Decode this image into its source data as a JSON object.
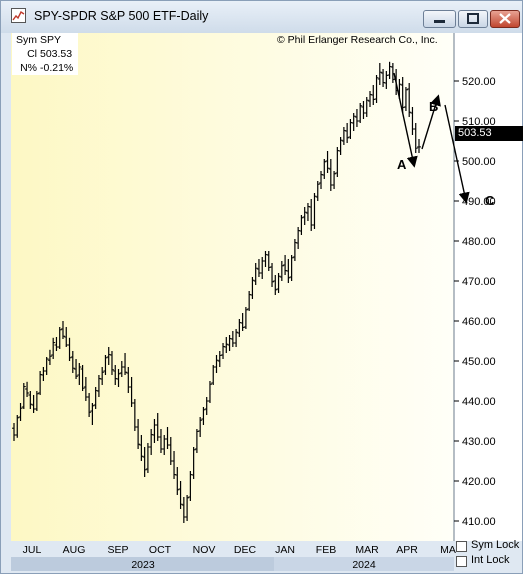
{
  "window": {
    "title": "SPY-SPDR S&P 500 ETF-Daily",
    "controls": [
      "minimize",
      "maximize",
      "close"
    ]
  },
  "info_box": {
    "rows": [
      {
        "label": "Sym",
        "value": "SPY"
      },
      {
        "label": "Cl",
        "value": "503.53"
      },
      {
        "label": "N%",
        "value": "-0.21%"
      }
    ]
  },
  "copyright": "© Phil Erlanger Research Co., Inc.",
  "last_price_tag": "503.53",
  "footer": {
    "sym_lock_label": "Sym Lock",
    "int_lock_label": "Int Lock",
    "sym_lock_checked": false,
    "int_lock_checked": false
  },
  "colors": {
    "plot_bg_light": "#fffff2",
    "plot_bg_shaded": "#fdf8c4",
    "bars": "#000000",
    "axis_bg": "#dfe8f2",
    "year_band": "#c9d6e6"
  },
  "chart_data": {
    "type": "bar",
    "style": "OHLC daily price bars",
    "title": "SPY-SPDR S&P 500 ETF-Daily",
    "ylim": [
      405,
      532
    ],
    "y_ticks": [
      "410.00",
      "420.00",
      "430.00",
      "440.00",
      "450.00",
      "460.00",
      "470.00",
      "480.00",
      "490.00",
      "500.00",
      "510.00",
      "520.00"
    ],
    "x_months": [
      "JUL",
      "AUG",
      "SEP",
      "OCT",
      "NOV",
      "DEC",
      "JAN",
      "FEB",
      "MAR",
      "APR",
      "MA"
    ],
    "years": [
      "2023",
      "2024"
    ],
    "grid": false,
    "last_close": 503.53,
    "series": [
      {
        "values": [
          {
            "o": 433.2,
            "h": 434.5,
            "l": 430.0,
            "c": 431.5
          },
          {
            "o": 431.5,
            "h": 436.5,
            "l": 430.8,
            "c": 435.8
          },
          {
            "o": 436.0,
            "h": 439.5,
            "l": 435.0,
            "c": 438.2
          },
          {
            "o": 438.5,
            "h": 444.5,
            "l": 438.0,
            "c": 443.6
          },
          {
            "o": 443.0,
            "h": 444.8,
            "l": 441.0,
            "c": 442.0
          },
          {
            "o": 441.5,
            "h": 442.5,
            "l": 438.0,
            "c": 439.2
          },
          {
            "o": 439.0,
            "h": 441.5,
            "l": 437.0,
            "c": 438.0
          },
          {
            "o": 438.0,
            "h": 442.5,
            "l": 437.5,
            "c": 441.8
          },
          {
            "o": 442.0,
            "h": 447.5,
            "l": 441.5,
            "c": 446.6
          },
          {
            "o": 446.5,
            "h": 448.5,
            "l": 445.0,
            "c": 447.5
          },
          {
            "o": 447.5,
            "h": 451.0,
            "l": 446.5,
            "c": 450.5
          },
          {
            "o": 450.2,
            "h": 452.8,
            "l": 449.0,
            "c": 451.2
          },
          {
            "o": 451.5,
            "h": 455.8,
            "l": 450.5,
            "c": 454.6
          },
          {
            "o": 454.0,
            "h": 456.0,
            "l": 452.5,
            "c": 453.5
          },
          {
            "o": 453.5,
            "h": 458.5,
            "l": 453.0,
            "c": 457.8
          },
          {
            "o": 458.0,
            "h": 460.0,
            "l": 455.5,
            "c": 456.2
          },
          {
            "o": 456.0,
            "h": 458.5,
            "l": 453.5,
            "c": 454.0
          },
          {
            "o": 454.0,
            "h": 455.8,
            "l": 450.0,
            "c": 450.8
          },
          {
            "o": 451.0,
            "h": 452.5,
            "l": 447.0,
            "c": 448.2
          },
          {
            "o": 448.0,
            "h": 450.5,
            "l": 445.5,
            "c": 446.2
          },
          {
            "o": 446.5,
            "h": 449.5,
            "l": 444.0,
            "c": 448.5
          },
          {
            "o": 448.0,
            "h": 449.0,
            "l": 442.5,
            "c": 443.2
          },
          {
            "o": 443.5,
            "h": 446.0,
            "l": 440.0,
            "c": 441.0
          },
          {
            "o": 441.0,
            "h": 442.0,
            "l": 436.0,
            "c": 437.2
          },
          {
            "o": 437.5,
            "h": 439.5,
            "l": 434.0,
            "c": 438.8
          },
          {
            "o": 439.0,
            "h": 443.5,
            "l": 438.0,
            "c": 442.6
          },
          {
            "o": 442.5,
            "h": 446.5,
            "l": 441.0,
            "c": 445.6
          },
          {
            "o": 445.5,
            "h": 448.5,
            "l": 444.0,
            "c": 447.2
          },
          {
            "o": 447.5,
            "h": 451.5,
            "l": 446.5,
            "c": 450.8
          },
          {
            "o": 451.0,
            "h": 453.5,
            "l": 449.0,
            "c": 451.6
          },
          {
            "o": 451.5,
            "h": 452.5,
            "l": 446.5,
            "c": 447.8
          },
          {
            "o": 447.5,
            "h": 449.0,
            "l": 444.0,
            "c": 445.6
          },
          {
            "o": 445.5,
            "h": 448.0,
            "l": 443.5,
            "c": 446.8
          },
          {
            "o": 447.0,
            "h": 450.0,
            "l": 446.0,
            "c": 448.5
          },
          {
            "o": 448.5,
            "h": 452.0,
            "l": 446.5,
            "c": 447.2
          },
          {
            "o": 447.0,
            "h": 448.5,
            "l": 442.0,
            "c": 443.5
          },
          {
            "o": 443.5,
            "h": 446.0,
            "l": 438.5,
            "c": 439.5
          },
          {
            "o": 439.5,
            "h": 440.5,
            "l": 432.5,
            "c": 433.5
          },
          {
            "o": 433.5,
            "h": 435.5,
            "l": 428.0,
            "c": 429.2
          },
          {
            "o": 429.0,
            "h": 431.5,
            "l": 425.0,
            "c": 426.2
          },
          {
            "o": 426.0,
            "h": 428.5,
            "l": 421.0,
            "c": 422.8
          },
          {
            "o": 423.0,
            "h": 429.5,
            "l": 422.0,
            "c": 428.5
          },
          {
            "o": 428.5,
            "h": 433.0,
            "l": 426.5,
            "c": 431.6
          },
          {
            "o": 431.5,
            "h": 435.5,
            "l": 429.5,
            "c": 434.0
          },
          {
            "o": 434.0,
            "h": 437.0,
            "l": 430.0,
            "c": 431.0
          },
          {
            "o": 431.0,
            "h": 433.0,
            "l": 427.0,
            "c": 428.0
          },
          {
            "o": 428.0,
            "h": 431.5,
            "l": 426.5,
            "c": 430.5
          },
          {
            "o": 430.5,
            "h": 433.5,
            "l": 428.0,
            "c": 429.0
          },
          {
            "o": 429.0,
            "h": 431.0,
            "l": 424.0,
            "c": 425.0
          },
          {
            "o": 425.0,
            "h": 427.5,
            "l": 420.5,
            "c": 421.6
          },
          {
            "o": 421.5,
            "h": 423.5,
            "l": 416.5,
            "c": 417.8
          },
          {
            "o": 418.0,
            "h": 420.0,
            "l": 413.0,
            "c": 414.2
          },
          {
            "o": 414.0,
            "h": 416.0,
            "l": 409.5,
            "c": 411.0
          },
          {
            "o": 411.0,
            "h": 416.5,
            "l": 410.0,
            "c": 415.8
          },
          {
            "o": 416.0,
            "h": 422.5,
            "l": 415.0,
            "c": 421.6
          },
          {
            "o": 421.5,
            "h": 428.5,
            "l": 420.5,
            "c": 427.8
          },
          {
            "o": 428.0,
            "h": 433.0,
            "l": 427.0,
            "c": 432.4
          },
          {
            "o": 432.5,
            "h": 436.0,
            "l": 431.0,
            "c": 435.2
          },
          {
            "o": 435.5,
            "h": 438.5,
            "l": 434.0,
            "c": 437.8
          },
          {
            "o": 438.0,
            "h": 441.0,
            "l": 436.5,
            "c": 440.0
          },
          {
            "o": 440.0,
            "h": 445.0,
            "l": 439.5,
            "c": 444.2
          },
          {
            "o": 444.5,
            "h": 449.0,
            "l": 444.0,
            "c": 448.5
          },
          {
            "o": 448.5,
            "h": 451.5,
            "l": 447.0,
            "c": 450.2
          },
          {
            "o": 450.0,
            "h": 452.5,
            "l": 448.5,
            "c": 451.4
          },
          {
            "o": 451.5,
            "h": 454.5,
            "l": 450.5,
            "c": 453.6
          },
          {
            "o": 453.5,
            "h": 456.0,
            "l": 452.0,
            "c": 454.2
          },
          {
            "o": 454.0,
            "h": 456.5,
            "l": 452.5,
            "c": 455.6
          },
          {
            "o": 455.5,
            "h": 457.5,
            "l": 453.5,
            "c": 454.5
          },
          {
            "o": 454.5,
            "h": 458.0,
            "l": 453.5,
            "c": 457.2
          },
          {
            "o": 457.0,
            "h": 460.5,
            "l": 456.0,
            "c": 459.6
          },
          {
            "o": 459.5,
            "h": 462.0,
            "l": 457.5,
            "c": 458.4
          },
          {
            "o": 458.5,
            "h": 463.5,
            "l": 458.0,
            "c": 462.8
          },
          {
            "o": 463.0,
            "h": 467.5,
            "l": 462.5,
            "c": 466.6
          },
          {
            "o": 466.5,
            "h": 471.0,
            "l": 465.5,
            "c": 470.2
          },
          {
            "o": 470.0,
            "h": 474.5,
            "l": 469.0,
            "c": 473.2
          },
          {
            "o": 473.0,
            "h": 475.5,
            "l": 471.0,
            "c": 472.0
          },
          {
            "o": 472.0,
            "h": 476.0,
            "l": 470.5,
            "c": 475.0
          },
          {
            "o": 475.0,
            "h": 477.5,
            "l": 473.5,
            "c": 476.6
          },
          {
            "o": 476.5,
            "h": 477.5,
            "l": 472.5,
            "c": 473.4
          },
          {
            "o": 473.5,
            "h": 474.5,
            "l": 468.5,
            "c": 469.8
          },
          {
            "o": 470.0,
            "h": 471.5,
            "l": 466.5,
            "c": 467.8
          },
          {
            "o": 468.0,
            "h": 472.0,
            "l": 467.0,
            "c": 471.2
          },
          {
            "o": 471.0,
            "h": 475.0,
            "l": 470.0,
            "c": 473.8
          },
          {
            "o": 474.0,
            "h": 476.5,
            "l": 471.5,
            "c": 472.6
          },
          {
            "o": 472.5,
            "h": 475.5,
            "l": 469.5,
            "c": 470.8
          },
          {
            "o": 471.0,
            "h": 476.5,
            "l": 470.0,
            "c": 475.8
          },
          {
            "o": 476.0,
            "h": 480.5,
            "l": 475.0,
            "c": 479.6
          },
          {
            "o": 479.5,
            "h": 483.5,
            "l": 478.0,
            "c": 482.6
          },
          {
            "o": 482.5,
            "h": 486.5,
            "l": 481.5,
            "c": 485.8
          },
          {
            "o": 486.0,
            "h": 488.5,
            "l": 484.0,
            "c": 487.2
          },
          {
            "o": 487.0,
            "h": 489.5,
            "l": 485.0,
            "c": 488.6
          },
          {
            "o": 488.5,
            "h": 490.5,
            "l": 482.5,
            "c": 484.0
          },
          {
            "o": 484.0,
            "h": 492.0,
            "l": 483.0,
            "c": 491.2
          },
          {
            "o": 491.0,
            "h": 495.0,
            "l": 490.0,
            "c": 494.2
          },
          {
            "o": 494.5,
            "h": 497.5,
            "l": 493.0,
            "c": 496.6
          },
          {
            "o": 496.5,
            "h": 500.5,
            "l": 495.5,
            "c": 499.8
          },
          {
            "o": 500.0,
            "h": 502.5,
            "l": 497.0,
            "c": 498.2
          },
          {
            "o": 498.0,
            "h": 500.5,
            "l": 492.5,
            "c": 494.0
          },
          {
            "o": 494.0,
            "h": 497.5,
            "l": 493.0,
            "c": 496.8
          },
          {
            "o": 497.0,
            "h": 503.5,
            "l": 496.0,
            "c": 502.6
          },
          {
            "o": 502.5,
            "h": 506.0,
            "l": 501.5,
            "c": 505.2
          },
          {
            "o": 505.0,
            "h": 508.5,
            "l": 504.0,
            "c": 507.6
          },
          {
            "o": 507.5,
            "h": 509.5,
            "l": 504.5,
            "c": 505.8
          },
          {
            "o": 506.0,
            "h": 510.5,
            "l": 505.5,
            "c": 509.6
          },
          {
            "o": 509.5,
            "h": 512.0,
            "l": 507.5,
            "c": 511.2
          },
          {
            "o": 511.0,
            "h": 513.0,
            "l": 508.5,
            "c": 510.0
          },
          {
            "o": 510.0,
            "h": 514.5,
            "l": 509.5,
            "c": 513.8
          },
          {
            "o": 513.5,
            "h": 515.0,
            "l": 510.5,
            "c": 512.0
          },
          {
            "o": 512.0,
            "h": 516.0,
            "l": 511.0,
            "c": 515.2
          },
          {
            "o": 515.0,
            "h": 517.5,
            "l": 513.5,
            "c": 516.6
          },
          {
            "o": 516.5,
            "h": 519.0,
            "l": 514.0,
            "c": 515.4
          },
          {
            "o": 515.5,
            "h": 521.5,
            "l": 514.5,
            "c": 520.8
          },
          {
            "o": 520.5,
            "h": 524.5,
            "l": 519.0,
            "c": 522.2
          },
          {
            "o": 522.0,
            "h": 523.0,
            "l": 518.5,
            "c": 519.6
          },
          {
            "o": 519.5,
            "h": 522.5,
            "l": 518.0,
            "c": 521.4
          },
          {
            "o": 521.5,
            "h": 524.8,
            "l": 520.5,
            "c": 523.6
          },
          {
            "o": 523.5,
            "h": 524.5,
            "l": 519.5,
            "c": 520.4
          },
          {
            "o": 520.5,
            "h": 523.0,
            "l": 516.5,
            "c": 517.6
          },
          {
            "o": 517.5,
            "h": 520.5,
            "l": 515.5,
            "c": 519.2
          },
          {
            "o": 519.0,
            "h": 521.0,
            "l": 512.0,
            "c": 513.4
          },
          {
            "o": 513.5,
            "h": 518.5,
            "l": 512.5,
            "c": 517.8
          },
          {
            "o": 518.0,
            "h": 519.5,
            "l": 511.0,
            "c": 512.2
          },
          {
            "o": 512.0,
            "h": 513.5,
            "l": 506.5,
            "c": 508.0
          },
          {
            "o": 508.0,
            "h": 509.5,
            "l": 502.0,
            "c": 503.2
          },
          {
            "o": 503.5,
            "h": 505.5,
            "l": 502.0,
            "c": 503.53
          }
        ]
      }
    ],
    "annotations": [
      {
        "label": "A",
        "from": 522,
        "to": 499
      },
      {
        "label": "B",
        "from": 503,
        "to": 516
      },
      {
        "label": "C",
        "from": 514,
        "to": 490
      }
    ]
  }
}
